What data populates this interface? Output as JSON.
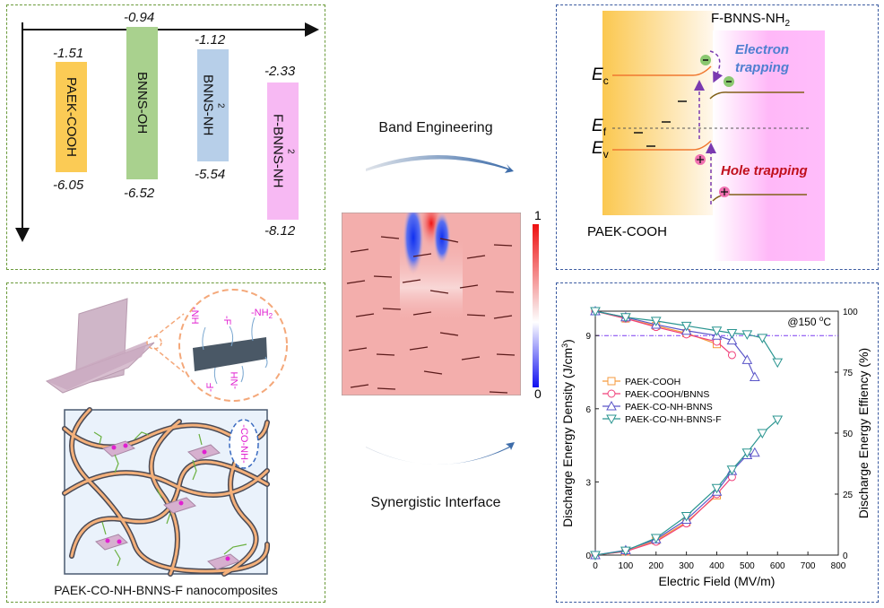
{
  "band_levels": {
    "items": [
      {
        "name": "PAEK-COOH",
        "top": "-1.51",
        "bottom": "-6.05",
        "color": "#fbcb55"
      },
      {
        "name": "BNNS-OH",
        "top": "-0.94",
        "bottom": "-6.52",
        "color": "#a9d18e"
      },
      {
        "name": "BNNS-NH",
        "sub": "2",
        "top": "-1.12",
        "bottom": "-5.54",
        "color": "#b7cfe9"
      },
      {
        "name": "F-BNNS-NH",
        "sub": "2",
        "top": "-2.33",
        "bottom": "-8.12",
        "color": "#f7b9f3"
      }
    ]
  },
  "nanocomposite": {
    "group_nh2": "-NH",
    "group_nh2_sub": "2",
    "group_f": "-F",
    "group_conh": "-CO-NH-",
    "caption": "PAEK-CO-NH-BNNS-F nanocomposites"
  },
  "center": {
    "band_engineering": "Band Engineering",
    "synergistic_interface": "Synergistic Interface",
    "colorbar_max": "1",
    "colorbar_min": "0"
  },
  "band_diagram": {
    "right_material": "F-BNNS-NH",
    "right_material_sub": "2",
    "left_material": "PAEK-COOH",
    "ec": "E",
    "ec_sub": "c",
    "ef": "E",
    "ef_sub": "f",
    "ev": "E",
    "ev_sub": "v",
    "electron_trapping_1": "Electron",
    "electron_trapping_2": "trapping",
    "hole_trapping": "Hole trapping",
    "electron_color": "#4f7fd0",
    "hole_color": "#c0101c"
  },
  "chart_data": {
    "type": "line",
    "xlabel": "Electric Field (MV/m)",
    "ylabel": "Discharge Energy Density (J/cm",
    "ylabel_sup": "3",
    "ylabel_end": ")",
    "y2label": "Discharge Energy Effiency (%)",
    "annotation": "@150 ",
    "annotation_unit": "C",
    "annotation_deg": "o",
    "xlim": [
      0,
      800
    ],
    "ylim": [
      0,
      10
    ],
    "y2lim": [
      0,
      100
    ],
    "xticks": [
      "0",
      "100",
      "200",
      "300",
      "400",
      "500",
      "600",
      "700",
      "800"
    ],
    "yticks": [
      "0",
      "3",
      "6",
      "9"
    ],
    "y2ticks": [
      "0",
      "25",
      "50",
      "75",
      "100"
    ],
    "reference_line": {
      "y": 9,
      "color": "#7a3cf0"
    },
    "legend_placement": "center-left",
    "x": [
      0,
      100,
      200,
      300,
      400,
      450,
      500,
      525,
      550,
      600
    ],
    "series": [
      {
        "name": "PAEK-COOH",
        "marker": "square",
        "color": "#f59a3c",
        "x": [
          0,
          100,
          200,
          300,
          400
        ],
        "energy_density": [
          0,
          0.15,
          0.6,
          1.35,
          2.45
        ],
        "efficiency": [
          100,
          97,
          94,
          91,
          86.5
        ]
      },
      {
        "name": "PAEK-COOH/BNNS",
        "marker": "circle",
        "color": "#f0407a",
        "x": [
          0,
          100,
          200,
          300,
          400,
          450
        ],
        "energy_density": [
          0,
          0.15,
          0.55,
          1.3,
          2.5,
          3.2
        ],
        "efficiency": [
          100,
          97,
          93.5,
          90.5,
          87.5,
          82
        ]
      },
      {
        "name": "PAEK-CO-NH-BNNS",
        "marker": "triangle-up",
        "color": "#5a55c8",
        "x": [
          0,
          100,
          200,
          300,
          400,
          450,
          500,
          525
        ],
        "energy_density": [
          0,
          0.2,
          0.65,
          1.45,
          2.6,
          3.45,
          4.1,
          4.2
        ],
        "efficiency": [
          100,
          97.5,
          94.5,
          92,
          90,
          88,
          80,
          73
        ]
      },
      {
        "name": "PAEK-CO-NH-BNNS-F",
        "marker": "triangle-down",
        "color": "#2a9590",
        "x": [
          0,
          100,
          200,
          300,
          400,
          450,
          500,
          550,
          600
        ],
        "energy_density": [
          0,
          0.18,
          0.7,
          1.6,
          2.75,
          3.5,
          4.2,
          5.0,
          5.55
        ],
        "efficiency": [
          100,
          97.5,
          96,
          94,
          92,
          91,
          90.5,
          89,
          79
        ]
      }
    ]
  }
}
